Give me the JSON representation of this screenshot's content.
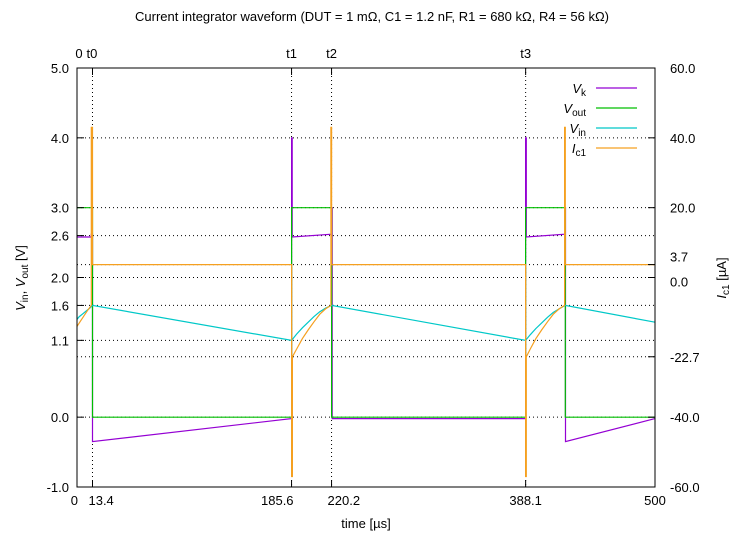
{
  "chart_data": {
    "type": "line",
    "title": "Current integrator waveform (DUT = 1 mΩ, C1 = 1.2 nF, R1 = 680 kΩ, R4 = 56 kΩ)",
    "xlabel": "time [µs]",
    "ylabel_left": {
      "v1": "V",
      "s1": "in",
      "sep": ", ",
      "v2": "V",
      "s2": "out",
      "unit": " [V]"
    },
    "ylabel_right": {
      "v": "I",
      "s": "c1",
      "unit": " [µA]"
    },
    "xlim": [
      0,
      500
    ],
    "ylim_left": [
      -1.0,
      5.0
    ],
    "ylim_right": [
      -60.0,
      60.0
    ],
    "grid": "dotted at labeled ticks",
    "legend_position": "top-right",
    "x_ticks_bottom": [
      {
        "value": 0,
        "label": "0"
      },
      {
        "value": 13.4,
        "label": "13.4"
      },
      {
        "value": 185.6,
        "label": "185.6"
      },
      {
        "value": 220.2,
        "label": "220.2"
      },
      {
        "value": 388.1,
        "label": "388.1"
      },
      {
        "value": 500,
        "label": "500"
      }
    ],
    "x_ticks_top": [
      {
        "value": 0,
        "label": "0"
      },
      {
        "value": 13.4,
        "label": "t0"
      },
      {
        "value": 185.6,
        "label": "t1"
      },
      {
        "value": 220.2,
        "label": "t2"
      },
      {
        "value": 388.1,
        "label": "t3"
      }
    ],
    "y_ticks_left": [
      {
        "value": -1.0,
        "label": "-1.0"
      },
      {
        "value": 0.0,
        "label": "0.0"
      },
      {
        "value": 1.1,
        "label": "1.1"
      },
      {
        "value": 1.6,
        "label": "1.6"
      },
      {
        "value": 2.0,
        "label": "2.0"
      },
      {
        "value": 2.6,
        "label": "2.6"
      },
      {
        "value": 3.0,
        "label": "3.0"
      },
      {
        "value": 4.0,
        "label": "4.0"
      },
      {
        "value": 5.0,
        "label": "5.0"
      }
    ],
    "y_ticks_right": [
      {
        "value": -60.0,
        "label": "-60.0"
      },
      {
        "value": -40.0,
        "label": "-40.0"
      },
      {
        "value": -22.7,
        "label": "-22.7"
      },
      {
        "value": 0.0,
        "label": "0.0"
      },
      {
        "value": 3.7,
        "label": "3.7"
      },
      {
        "value": 20.0,
        "label": "20.0"
      },
      {
        "value": 40.0,
        "label": "40.0"
      },
      {
        "value": 60.0,
        "label": "60.0"
      }
    ],
    "series": [
      {
        "name": {
          "v": "V",
          "s": "k"
        },
        "axis": "left",
        "color": "#9400d3",
        "x": [
          0,
          12.3,
          12.3,
          13.4,
          13.4,
          185.6,
          185.6,
          186.2,
          186.2,
          220.2,
          220.2,
          220.8,
          220.8,
          388.1,
          388.1,
          388.7,
          388.7,
          421.9,
          421.9,
          422.6,
          422.6,
          500
        ],
        "y": [
          2.58,
          2.58,
          2.62,
          2.62,
          -0.35,
          -0.02,
          4.0,
          4.0,
          2.58,
          2.62,
          3.0,
          3.0,
          -0.02,
          -0.02,
          4.0,
          4.0,
          2.58,
          2.62,
          3.0,
          3.0,
          -0.35,
          -0.02
        ]
      },
      {
        "name": {
          "v": "V",
          "s": "out"
        },
        "axis": "left",
        "color": "#00bf00",
        "x": [
          0,
          13.4,
          13.4,
          185.6,
          185.6,
          220.2,
          220.2,
          388.1,
          388.1,
          422.4,
          422.4,
          500
        ],
        "y": [
          3.0,
          3.0,
          0.0,
          0.0,
          3.0,
          3.0,
          0.0,
          0.0,
          3.0,
          3.0,
          0.0,
          0.0
        ]
      },
      {
        "name": {
          "v": "V",
          "s": "in"
        },
        "axis": "left",
        "color": "#00c8c8",
        "x": [
          0,
          2,
          5,
          8,
          11,
          13.4,
          185.6,
          190,
          195,
          200,
          205,
          210,
          215,
          220.2,
          388.1,
          392,
          397,
          402,
          407,
          412,
          417,
          422.4,
          500
        ],
        "y": [
          1.4,
          1.44,
          1.48,
          1.52,
          1.56,
          1.6,
          1.1,
          1.19,
          1.28,
          1.36,
          1.44,
          1.51,
          1.56,
          1.6,
          1.1,
          1.18,
          1.27,
          1.35,
          1.43,
          1.5,
          1.55,
          1.6,
          1.36
        ]
      },
      {
        "name": {
          "v": "I",
          "s": "c1"
        },
        "axis": "right",
        "color": "#f5a020",
        "x": [
          0,
          3,
          6,
          9,
          12.4,
          12.4,
          13.4,
          13.4,
          185.6,
          185.6,
          186.3,
          186.3,
          190,
          195,
          200,
          205,
          210,
          215,
          219.6,
          219.6,
          220.2,
          220.2,
          388.1,
          388.1,
          388.7,
          388.7,
          392,
          397,
          402,
          407,
          412,
          417,
          421.8,
          421.8,
          422.4,
          422.4,
          500
        ],
        "y": [
          -14,
          -12.5,
          -11,
          -9.5,
          -8,
          43,
          43,
          3.7,
          3.7,
          -57,
          -57,
          -22.7,
          -20.5,
          -17.5,
          -15,
          -12.7,
          -10.5,
          -9,
          -8,
          43,
          43,
          3.7,
          3.7,
          -57,
          -57,
          -22.7,
          -20.5,
          -17.5,
          -15,
          -12.7,
          -10.5,
          -9,
          -8,
          43,
          43,
          3.7,
          3.7
        ]
      }
    ]
  }
}
